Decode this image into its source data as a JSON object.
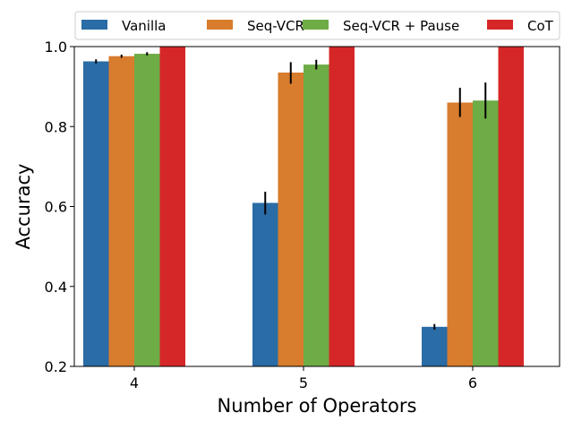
{
  "chart_data": {
    "type": "bar",
    "title": "",
    "xlabel": "Number of Operators",
    "ylabel": "Accuracy",
    "categories": [
      "4",
      "5",
      "6"
    ],
    "ylim": [
      0.2,
      1.0
    ],
    "yticks": [
      0.2,
      0.4,
      0.6,
      0.8,
      1.0
    ],
    "ytick_labels": [
      "0.2",
      "0.4",
      "0.6",
      "0.8",
      "1.0"
    ],
    "grid": false,
    "legend_position": "top",
    "series": [
      {
        "name": "Vanilla",
        "color": "#2a6ca5",
        "values": [
          0.963,
          0.609,
          0.299
        ],
        "err_low": [
          0.958,
          0.58,
          0.292
        ],
        "err_high": [
          0.968,
          0.637,
          0.306
        ]
      },
      {
        "name": "Seq-VCR",
        "color": "#d87c2d",
        "values": [
          0.976,
          0.935,
          0.86
        ],
        "err_low": [
          0.972,
          0.907,
          0.824
        ],
        "err_high": [
          0.98,
          0.961,
          0.897
        ]
      },
      {
        "name": "Seq-VCR + Pause",
        "color": "#6eac46",
        "values": [
          0.982,
          0.955,
          0.865
        ],
        "err_low": [
          0.978,
          0.943,
          0.82
        ],
        "err_high": [
          0.986,
          0.967,
          0.91
        ]
      },
      {
        "name": "CoT",
        "color": "#d62728",
        "values": [
          1.0,
          1.0,
          1.0
        ],
        "err_low": [
          1.0,
          1.0,
          1.0
        ],
        "err_high": [
          1.0,
          1.0,
          1.0
        ]
      }
    ]
  }
}
